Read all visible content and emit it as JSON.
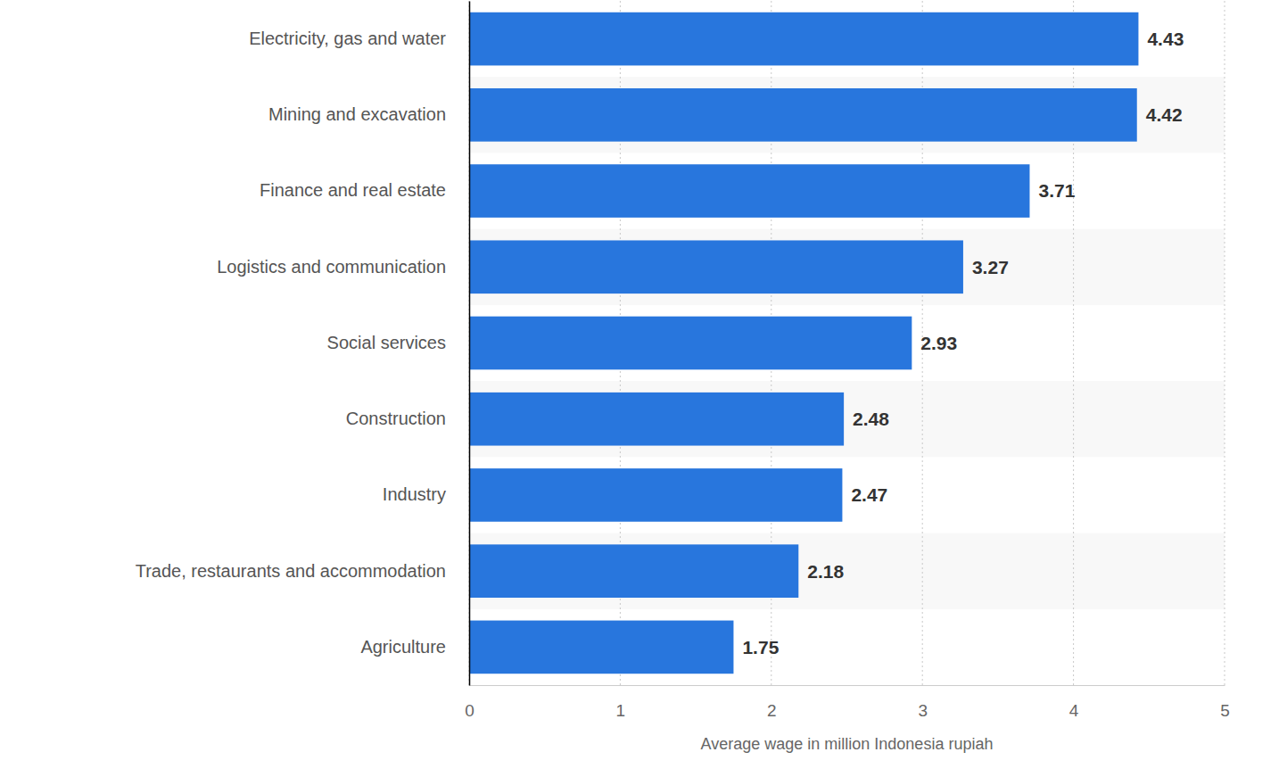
{
  "chart_data": {
    "type": "bar",
    "orientation": "horizontal",
    "categories": [
      "Electricity, gas and water",
      "Mining and excavation",
      "Finance and real estate",
      "Logistics and communication",
      "Social services",
      "Construction",
      "Industry",
      "Trade, restaurants and accommodation",
      "Agriculture"
    ],
    "values": [
      4.43,
      4.42,
      3.71,
      3.27,
      2.93,
      2.48,
      2.47,
      2.18,
      1.75
    ],
    "color": "#2876dd",
    "xlabel": "Average wage in million Indonesia rupiah",
    "xlim": [
      0,
      5
    ],
    "xticks": [
      0,
      1,
      2,
      3,
      4,
      5
    ],
    "grid": true,
    "data_labels": true
  }
}
